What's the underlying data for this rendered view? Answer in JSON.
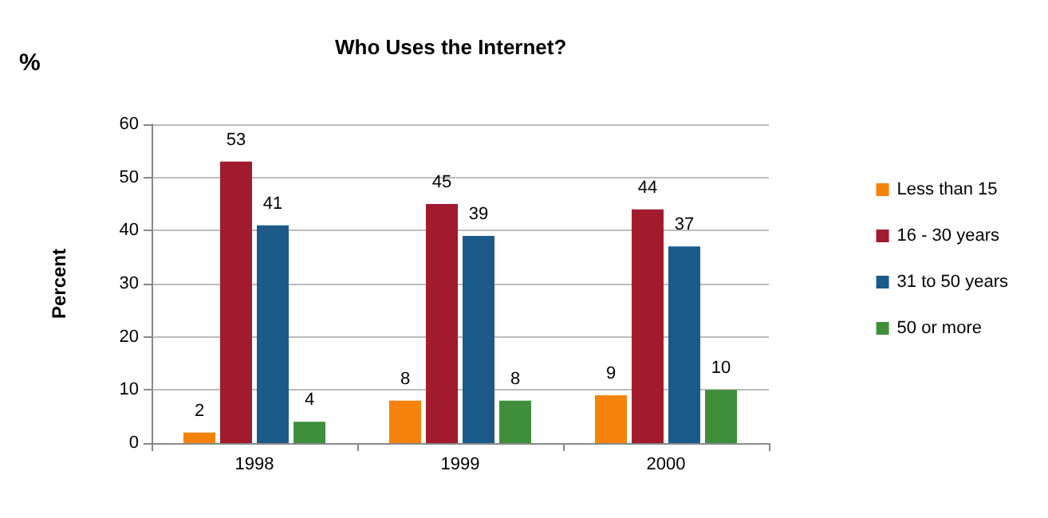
{
  "chart_data": {
    "type": "bar",
    "title": "Who Uses the Internet?",
    "ylabel": "Percent",
    "annotations": [
      "%"
    ],
    "categories": [
      "1998",
      "1999",
      "2000"
    ],
    "series": [
      {
        "name": "Less than 15",
        "color": "#f5820a",
        "values": [
          2,
          8,
          9
        ]
      },
      {
        "name": "16 - 30 years",
        "color": "#a21a2e",
        "values": [
          53,
          45,
          44
        ]
      },
      {
        "name": "31 to 50 years",
        "color": "#1c5a8a",
        "values": [
          41,
          39,
          37
        ]
      },
      {
        "name": "50 or more",
        "color": "#3f8f3a",
        "values": [
          4,
          8,
          10
        ]
      }
    ],
    "ylim": [
      0,
      60
    ],
    "yticks": [
      0,
      10,
      20,
      30,
      40,
      50,
      60
    ],
    "grid": "y",
    "legend": "right",
    "data_labels": true
  }
}
